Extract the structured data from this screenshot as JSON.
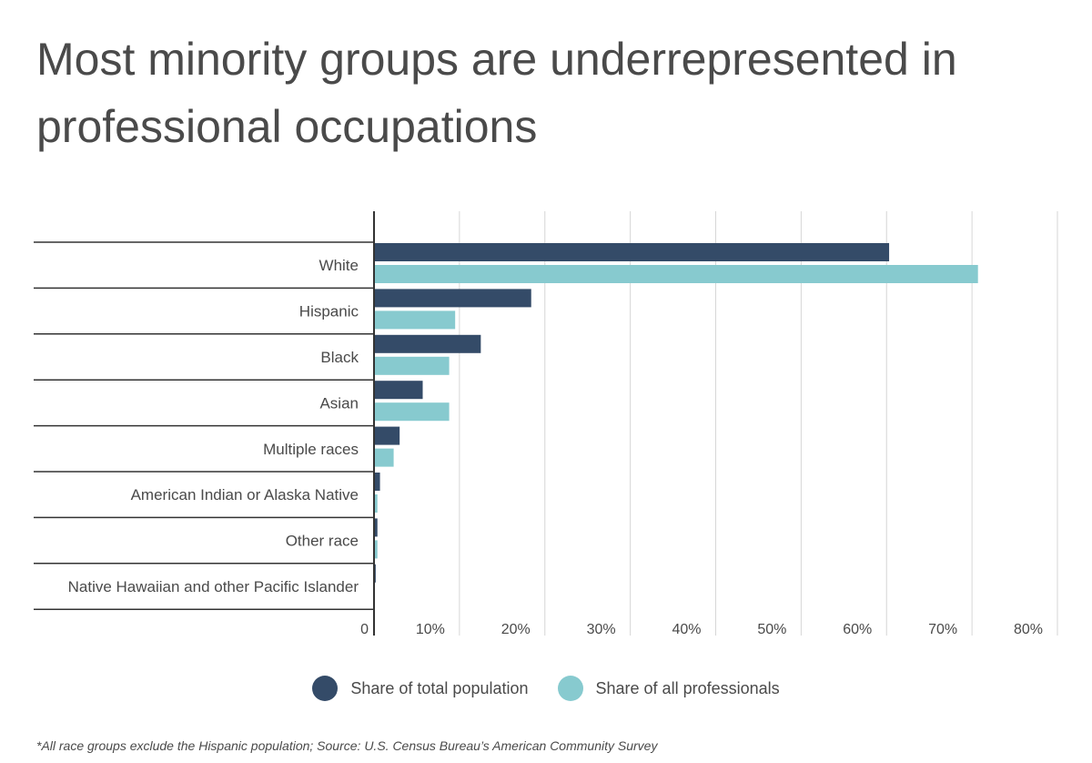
{
  "chart_data": {
    "type": "bar",
    "orientation": "horizontal",
    "title": "Most minority groups are underrepresented in professional occupations",
    "categories": [
      "White",
      "Hispanic",
      "Black",
      "Asian",
      "Multiple races",
      "American Indian or Alaska Native",
      "Other race",
      "Native Hawaiian and other Pacific Islander"
    ],
    "series": [
      {
        "name": "Share of total population",
        "color": "#344b68",
        "values": [
          60.3,
          18.4,
          12.5,
          5.7,
          3.0,
          0.7,
          0.4,
          0.2
        ]
      },
      {
        "name": "Share of all professionals",
        "color": "#87cacf",
        "values": [
          70.7,
          9.5,
          8.8,
          8.8,
          2.3,
          0.4,
          0.4,
          0.1
        ]
      }
    ],
    "xlim": [
      0,
      80
    ],
    "xticks": [
      "0",
      "10%",
      "20%",
      "30%",
      "40%",
      "50%",
      "60%",
      "70%",
      "80%"
    ],
    "grid": true,
    "legend": "bottom-center",
    "footnote": "*All race groups exclude the Hispanic population; Source: U.S. Census Bureau’s American Community Survey"
  }
}
